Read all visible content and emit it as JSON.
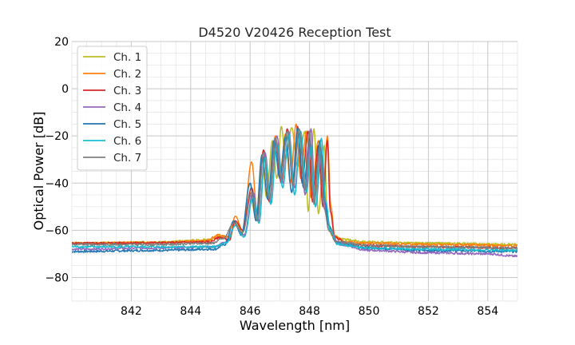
{
  "chart_data": {
    "type": "line",
    "title": "D4520 V20426 Reception Test",
    "xlabel": "Wavelength [nm]",
    "ylabel": "Optical Power [dB]",
    "xlim": [
      840,
      855
    ],
    "ylim": [
      -90,
      20
    ],
    "x_ticks": [
      842,
      844,
      846,
      848,
      850,
      852,
      854
    ],
    "x_tick_labels": [
      "842",
      "844",
      "846",
      "848",
      "850",
      "852",
      "854"
    ],
    "x_minor_step": 0.5,
    "y_ticks": [
      -80,
      -60,
      -40,
      -20,
      0,
      20
    ],
    "y_tick_labels": [
      "−80",
      "−60",
      "−40",
      "−20",
      "0",
      "20"
    ],
    "y_minor_step": 5,
    "grid": true,
    "legend_position": "top-left",
    "series": [
      {
        "name": "Ch. 1",
        "color": "#bcbd22",
        "points": [
          [
            840,
            -65.5
          ],
          [
            843,
            -65
          ],
          [
            844.6,
            -64
          ],
          [
            845.0,
            -62.5
          ],
          [
            845.3,
            -64
          ],
          [
            845.5,
            -57
          ],
          [
            845.75,
            -61
          ],
          [
            846.0,
            -45
          ],
          [
            846.2,
            -55
          ],
          [
            846.4,
            -28
          ],
          [
            846.55,
            -46
          ],
          [
            846.75,
            -22
          ],
          [
            846.9,
            -38
          ],
          [
            847.05,
            -16
          ],
          [
            847.2,
            -30
          ],
          [
            847.4,
            -16.5
          ],
          [
            847.6,
            -33
          ],
          [
            847.85,
            -18
          ],
          [
            847.95,
            -52
          ],
          [
            848.15,
            -17
          ],
          [
            848.3,
            -53
          ],
          [
            848.5,
            -24
          ],
          [
            848.6,
            -55
          ],
          [
            848.75,
            -62
          ],
          [
            849.2,
            -64
          ],
          [
            850,
            -65
          ],
          [
            852,
            -65.5
          ],
          [
            855,
            -66
          ]
        ]
      },
      {
        "name": "Ch. 2",
        "color": "#ff7f0e",
        "points": [
          [
            840,
            -65.5
          ],
          [
            843,
            -65.2
          ],
          [
            844.5,
            -64.5
          ],
          [
            844.95,
            -62
          ],
          [
            845.3,
            -63
          ],
          [
            845.5,
            -54
          ],
          [
            845.75,
            -60
          ],
          [
            846.05,
            -31
          ],
          [
            846.25,
            -54
          ],
          [
            846.45,
            -26
          ],
          [
            846.65,
            -42
          ],
          [
            846.85,
            -20
          ],
          [
            847.0,
            -36
          ],
          [
            847.2,
            -19
          ],
          [
            847.35,
            -40
          ],
          [
            847.55,
            -15
          ],
          [
            847.7,
            -38
          ],
          [
            847.9,
            -18
          ],
          [
            848.05,
            -46
          ],
          [
            848.3,
            -22
          ],
          [
            848.45,
            -46
          ],
          [
            848.6,
            -20
          ],
          [
            848.72,
            -50
          ],
          [
            848.85,
            -63
          ],
          [
            849.3,
            -65
          ],
          [
            850,
            -65.5
          ],
          [
            852,
            -66
          ],
          [
            855,
            -66.5
          ]
        ]
      },
      {
        "name": "Ch. 3",
        "color": "#d62728",
        "points": [
          [
            840,
            -65.5
          ],
          [
            843,
            -65.3
          ],
          [
            844.6,
            -65
          ],
          [
            845.0,
            -63
          ],
          [
            845.3,
            -64
          ],
          [
            845.5,
            -56
          ],
          [
            845.75,
            -60
          ],
          [
            846.05,
            -42
          ],
          [
            846.25,
            -55
          ],
          [
            846.45,
            -26
          ],
          [
            846.65,
            -48
          ],
          [
            846.85,
            -22
          ],
          [
            847.05,
            -40
          ],
          [
            847.25,
            -17
          ],
          [
            847.45,
            -42
          ],
          [
            847.6,
            -16
          ],
          [
            847.75,
            -40
          ],
          [
            847.95,
            -18
          ],
          [
            848.1,
            -48
          ],
          [
            848.3,
            -24
          ],
          [
            848.45,
            -50
          ],
          [
            848.6,
            -22
          ],
          [
            848.7,
            -52
          ],
          [
            848.85,
            -63
          ],
          [
            849.3,
            -66
          ],
          [
            850,
            -66.5
          ],
          [
            852,
            -67
          ],
          [
            855,
            -67.5
          ]
        ]
      },
      {
        "name": "Ch. 4",
        "color": "#9467bd",
        "points": [
          [
            840,
            -68
          ],
          [
            843,
            -67.5
          ],
          [
            844.8,
            -67
          ],
          [
            845.2,
            -65
          ],
          [
            845.5,
            -58
          ],
          [
            845.8,
            -62
          ],
          [
            846.1,
            -44
          ],
          [
            846.3,
            -56
          ],
          [
            846.5,
            -27
          ],
          [
            846.7,
            -48
          ],
          [
            846.9,
            -20
          ],
          [
            847.1,
            -40
          ],
          [
            847.3,
            -18
          ],
          [
            847.5,
            -42
          ],
          [
            847.7,
            -20
          ],
          [
            847.85,
            -45
          ],
          [
            848.05,
            -17
          ],
          [
            848.2,
            -50
          ],
          [
            848.4,
            -28
          ],
          [
            848.55,
            -52
          ],
          [
            848.7,
            -60
          ],
          [
            849.0,
            -66
          ],
          [
            850,
            -68.5
          ],
          [
            852,
            -69.5
          ],
          [
            854,
            -70
          ],
          [
            855,
            -71
          ]
        ]
      },
      {
        "name": "Ch. 5",
        "color": "#1f77b4",
        "points": [
          [
            840,
            -69
          ],
          [
            843,
            -68.5
          ],
          [
            844.8,
            -68
          ],
          [
            845.15,
            -66
          ],
          [
            845.45,
            -56
          ],
          [
            845.7,
            -62
          ],
          [
            846.0,
            -40
          ],
          [
            846.2,
            -56
          ],
          [
            846.4,
            -28
          ],
          [
            846.6,
            -47
          ],
          [
            846.8,
            -22
          ],
          [
            847.0,
            -38
          ],
          [
            847.2,
            -20
          ],
          [
            847.4,
            -44
          ],
          [
            847.6,
            -17
          ],
          [
            847.8,
            -42
          ],
          [
            848.0,
            -21
          ],
          [
            848.15,
            -48
          ],
          [
            848.35,
            -22
          ],
          [
            848.5,
            -46
          ],
          [
            848.65,
            -58
          ],
          [
            848.9,
            -65
          ],
          [
            850,
            -67.5
          ],
          [
            852,
            -68.5
          ],
          [
            855,
            -69
          ]
        ]
      },
      {
        "name": "Ch. 6",
        "color": "#17becf",
        "points": [
          [
            840,
            -67
          ],
          [
            843,
            -67
          ],
          [
            844.8,
            -67
          ],
          [
            845.2,
            -65.5
          ],
          [
            845.5,
            -58
          ],
          [
            845.8,
            -63
          ],
          [
            846.1,
            -46
          ],
          [
            846.3,
            -57
          ],
          [
            846.5,
            -29
          ],
          [
            846.7,
            -49
          ],
          [
            846.9,
            -23
          ],
          [
            847.1,
            -42
          ],
          [
            847.3,
            -19
          ],
          [
            847.5,
            -45
          ],
          [
            847.7,
            -18
          ],
          [
            847.9,
            -44
          ],
          [
            848.05,
            -24
          ],
          [
            848.2,
            -50
          ],
          [
            848.4,
            -21
          ],
          [
            848.55,
            -48
          ],
          [
            848.7,
            -60
          ],
          [
            848.95,
            -66
          ],
          [
            850,
            -67.5
          ],
          [
            852,
            -68
          ],
          [
            855,
            -68.5
          ]
        ]
      },
      {
        "name": "Ch. 7",
        "color": "#7f7f7f",
        "points": [
          [
            840,
            -66
          ],
          [
            843,
            -66
          ],
          [
            844.7,
            -65.5
          ],
          [
            845.1,
            -63.5
          ],
          [
            845.45,
            -57
          ],
          [
            845.75,
            -61
          ],
          [
            846.05,
            -44
          ],
          [
            846.25,
            -56
          ],
          [
            846.45,
            -27
          ],
          [
            846.65,
            -47
          ],
          [
            846.85,
            -21
          ],
          [
            847.05,
            -38
          ],
          [
            847.25,
            -18
          ],
          [
            847.45,
            -41
          ],
          [
            847.65,
            -17
          ],
          [
            847.85,
            -43
          ],
          [
            848.0,
            -18
          ],
          [
            848.15,
            -49
          ],
          [
            848.35,
            -25
          ],
          [
            848.5,
            -51
          ],
          [
            848.65,
            -60
          ],
          [
            848.9,
            -65
          ],
          [
            850,
            -66.5
          ],
          [
            852,
            -67
          ],
          [
            855,
            -67.5
          ]
        ]
      }
    ]
  }
}
